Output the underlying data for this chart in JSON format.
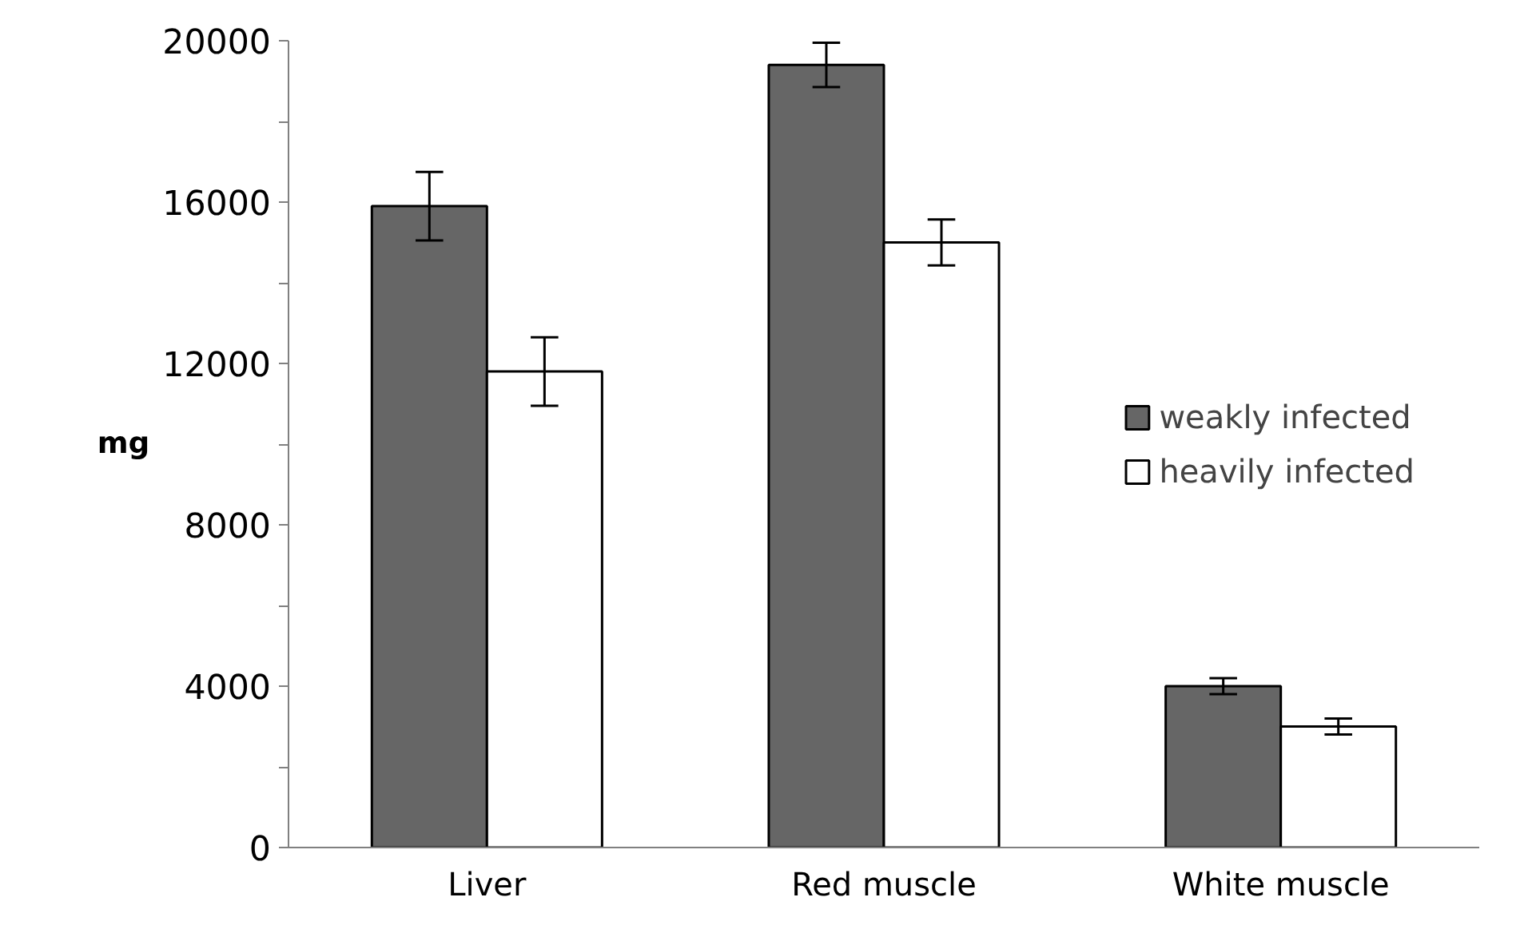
{
  "chart_data": {
    "type": "bar",
    "ylabel": "mg",
    "categories": [
      "Liver",
      "Red muscle",
      "White muscle"
    ],
    "series": [
      {
        "name": "weakly infected",
        "color": "#666666",
        "values": [
          15900,
          19400,
          4000
        ],
        "errors": [
          850,
          550,
          200
        ]
      },
      {
        "name": "heavily infected",
        "color": "#ffffff",
        "values": [
          11800,
          15000,
          3000
        ],
        "errors": [
          850,
          570,
          200
        ]
      }
    ],
    "ylim": [
      0,
      20000
    ],
    "yticks": [
      0,
      {
        "value": 2000,
        "label": null
      },
      4000,
      {
        "value": 6000,
        "label": null
      },
      8000,
      {
        "value": 10000,
        "label": null
      },
      12000,
      {
        "value": 14000,
        "label": null
      },
      16000,
      {
        "value": 18000,
        "label": null
      },
      20000
    ],
    "grid": false,
    "legend": "right"
  }
}
